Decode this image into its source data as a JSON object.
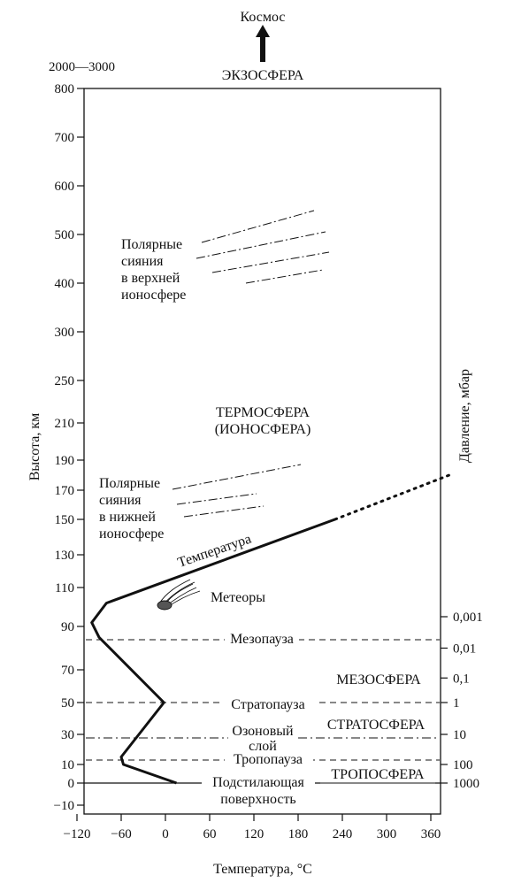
{
  "top": {
    "space_label": "Космос",
    "exo_range": "2000—3000",
    "exosphere": "ЭКЗОСФЕРА"
  },
  "axes": {
    "ylabel": "Высота, км",
    "xlabel": "Температура, °C",
    "right_label": "Давление, мбар"
  },
  "labels": {
    "thermosphere_1": "ТЕРМОСФЕРА",
    "thermosphere_2": "(ИОНОСФЕРА)",
    "aurora_upper": [
      "Полярные",
      "сияния",
      "в верхней",
      "ионосфере"
    ],
    "aurora_lower": [
      "Полярные",
      "сияния",
      "в нижней",
      "ионосфере"
    ],
    "temperature": "Температура",
    "meteors": "Метеоры",
    "mesopause": "Мезопауза",
    "mesosphere": "МЕЗОСФЕРА",
    "stratopause": "Стратопауза",
    "stratosphere": "СТРАТОСФЕРА",
    "ozone_1": "Озоновый",
    "ozone_2": "слой",
    "tropopause": "Тропопауза",
    "troposphere": "ТРОПОСФЕРА",
    "surface_1": "Подстилающая",
    "surface_2": "поверхность"
  },
  "chart_data": {
    "type": "line",
    "y_ticks": [
      "800",
      "700",
      "600",
      "500",
      "400",
      "300",
      "250",
      "210",
      "190",
      "170",
      "150",
      "130",
      "110",
      "90",
      "70",
      "50",
      "30",
      "10",
      "0",
      "−10"
    ],
    "x_ticks": [
      "−120",
      "−60",
      "0",
      "60",
      "120",
      "180",
      "240",
      "300",
      "360"
    ],
    "x_values": [
      -120,
      -60,
      0,
      60,
      120,
      180,
      240,
      300,
      360
    ],
    "pressure_ticks": [
      "0,001",
      "0,01",
      "0,1",
      "1",
      "10",
      "100",
      "1000"
    ],
    "pressure_at_altitude_km": [
      95,
      80,
      65,
      50,
      30,
      10,
      0
    ],
    "temperature_profile": [
      {
        "altitude_km": 0,
        "temperature_c": 15
      },
      {
        "altitude_km": 10,
        "temperature_c": -57
      },
      {
        "altitude_km": 15,
        "temperature_c": -60
      },
      {
        "altitude_km": 50,
        "temperature_c": -2
      },
      {
        "altitude_km": 85,
        "temperature_c": -90
      },
      {
        "altitude_km": 92,
        "temperature_c": -100
      },
      {
        "altitude_km": 102,
        "temperature_c": -80
      },
      {
        "altitude_km": 150,
        "temperature_c": 230
      }
    ],
    "temperature_extension": [
      {
        "altitude_km": 150,
        "temperature_c": 230
      },
      {
        "altitude_km": 180,
        "temperature_c": 385
      }
    ],
    "boundaries_km": {
      "mesopause": 85,
      "stratopause": 50,
      "ozone_layer": 25,
      "tropopause": 12
    }
  }
}
